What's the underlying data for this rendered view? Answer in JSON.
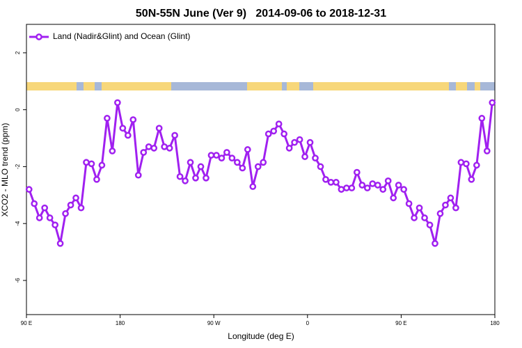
{
  "chart_data": {
    "type": "line",
    "title": "50N-55N June (Ver 9)   2014-09-06 to 2018-12-31",
    "xlabel": "Longitude (deg E)",
    "ylabel": "XCO2 - MLO trend (ppm)",
    "legend": "top-left",
    "xlim": [
      90,
      540
    ],
    "xticks": [
      {
        "value": 90,
        "label": "90 E"
      },
      180,
      {
        "value": 270,
        "label": "90 W"
      },
      {
        "value": 360,
        "label": "0"
      },
      {
        "value": 450,
        "label": "90 E"
      },
      {
        "value": 540,
        "label": "180"
      }
    ],
    "ylim": [
      -7.2,
      3
    ],
    "yticks": [
      -6,
      -4,
      -2,
      0,
      2
    ],
    "x": [
      92.5,
      97.5,
      102.5,
      107.5,
      112.5,
      117.5,
      122.5,
      127.5,
      132.5,
      137.5,
      142.5,
      147.5,
      152.5,
      157.5,
      162.5,
      167.5,
      172.5,
      177.5,
      182.5,
      187.5,
      192.5,
      197.5,
      202.5,
      207.5,
      212.5,
      217.5,
      222.5,
      227.5,
      232.5,
      237.5,
      242.5,
      247.5,
      252.5,
      257.5,
      262.5,
      267.5,
      272.5,
      277.5,
      282.5,
      287.5,
      292.5,
      297.5,
      302.5,
      307.5,
      312.5,
      317.5,
      322.5,
      327.5,
      332.5,
      337.5,
      342.5,
      347.5,
      352.5,
      357.5,
      362.5,
      367.5,
      372.5,
      377.5,
      382.5,
      387.5,
      392.5,
      397.5,
      402.5,
      407.5,
      412.5,
      417.5,
      422.5,
      427.5,
      432.5,
      437.5,
      442.5,
      447.5,
      452.5,
      457.5,
      462.5,
      467.5,
      472.5,
      477.5,
      482.5,
      487.5,
      492.5,
      497.5,
      502.5,
      507.5,
      512.5,
      517.5,
      522.5,
      527.5,
      532.5,
      537.5
    ],
    "series": [
      {
        "name": "Land (Nadir&Glint) and Ocean (Glint)",
        "color": "#a020f0",
        "values": [
          -2.8,
          -3.3,
          -3.8,
          -3.45,
          -3.8,
          -4.05,
          -4.7,
          -3.65,
          -3.35,
          -3.1,
          -3.45,
          -1.85,
          -1.9,
          -2.45,
          -1.95,
          -0.3,
          -1.45,
          0.25,
          -0.65,
          -0.9,
          -0.35,
          -2.3,
          -1.5,
          -1.3,
          -1.35,
          -0.65,
          -1.3,
          -1.35,
          -0.9,
          -2.35,
          -2.5,
          -1.85,
          -2.4,
          -2.0,
          -2.4,
          -1.6,
          -1.6,
          -1.7,
          -1.5,
          -1.7,
          -1.85,
          -2.05,
          -1.4,
          -2.7,
          -2.0,
          -1.85,
          -0.85,
          -0.75,
          -0.5,
          -0.85,
          -1.35,
          -1.15,
          -1.05,
          -1.65,
          -1.15,
          -1.7,
          -2.0,
          -2.45,
          -2.55,
          -2.55,
          -2.8,
          -2.75,
          -2.75,
          -2.2,
          -2.65,
          -2.75,
          -2.6,
          -2.65,
          -2.8,
          -2.5,
          -3.1,
          -2.65,
          -2.8,
          -3.3,
          -3.8,
          -3.45,
          -3.8,
          -4.05,
          -4.7,
          -3.65,
          -3.35,
          -3.1,
          -3.45,
          -1.85,
          -1.9,
          -2.45,
          -1.95,
          -0.3,
          -1.45,
          0.25
        ]
      }
    ]
  }
}
